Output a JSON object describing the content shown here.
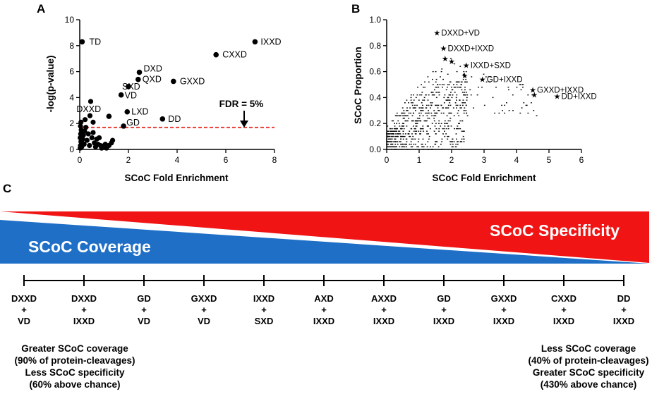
{
  "figure_labels": {
    "A": "A",
    "B": "B",
    "C": "C"
  },
  "chart_data": [
    {
      "id": "A",
      "type": "scatter",
      "xlabel": "SCoC Fold Enrichment",
      "ylabel": "-log(p-value)",
      "xlim": [
        0,
        8
      ],
      "ylim": [
        0,
        10
      ],
      "xticks": [
        0,
        2,
        4,
        6,
        8
      ],
      "yticks": [
        0,
        2,
        4,
        6,
        8,
        10
      ],
      "threshold": {
        "y": 1.7,
        "label": "FDR = 5%",
        "color": "#e8261f"
      },
      "labeled_points": [
        {
          "x": 0.1,
          "y": 8.3,
          "label": "TD"
        },
        {
          "x": 7.2,
          "y": 8.3,
          "label": "IXXD"
        },
        {
          "x": 5.6,
          "y": 7.3,
          "label": "CXXD"
        },
        {
          "x": 2.45,
          "y": 5.95,
          "label": "DXD"
        },
        {
          "x": 2.4,
          "y": 5.4,
          "label": "QXD"
        },
        {
          "x": 3.85,
          "y": 5.25,
          "label": "GXXD"
        },
        {
          "x": 2.0,
          "y": 4.85,
          "label": "SXD"
        },
        {
          "x": 1.7,
          "y": 4.2,
          "label": "VD"
        },
        {
          "x": 1.2,
          "y": 2.55,
          "label": "DXXD"
        },
        {
          "x": 1.95,
          "y": 2.9,
          "label": "LXD"
        },
        {
          "x": 3.4,
          "y": 2.35,
          "label": "DD"
        },
        {
          "x": 1.8,
          "y": 1.8,
          "label": "GD"
        }
      ],
      "other_points": [
        {
          "x": 0.02,
          "y": 0.1
        },
        {
          "x": 0.03,
          "y": 0.3
        },
        {
          "x": 0.05,
          "y": 0.6
        },
        {
          "x": 0.02,
          "y": 0.9
        },
        {
          "x": 0.04,
          "y": 1.2
        },
        {
          "x": 0.06,
          "y": 1.5
        },
        {
          "x": 0.03,
          "y": 1.8
        },
        {
          "x": 0.05,
          "y": 2.1
        },
        {
          "x": 0.08,
          "y": 0.2
        },
        {
          "x": 0.1,
          "y": 0.5
        },
        {
          "x": 0.12,
          "y": 0.8
        },
        {
          "x": 0.15,
          "y": 1.1
        },
        {
          "x": 0.18,
          "y": 0.4
        },
        {
          "x": 0.2,
          "y": 1.4
        },
        {
          "x": 0.22,
          "y": 2.3
        },
        {
          "x": 0.3,
          "y": 0.7
        },
        {
          "x": 0.35,
          "y": 1.2
        },
        {
          "x": 0.4,
          "y": 0.3
        },
        {
          "x": 0.42,
          "y": 2.6
        },
        {
          "x": 0.45,
          "y": 3.7
        },
        {
          "x": 0.5,
          "y": 0.9
        },
        {
          "x": 0.55,
          "y": 1.3
        },
        {
          "x": 0.6,
          "y": 0.5
        },
        {
          "x": 0.65,
          "y": 0.2
        },
        {
          "x": 0.7,
          "y": 0.8
        },
        {
          "x": 0.75,
          "y": 0.4
        },
        {
          "x": 0.8,
          "y": 0.9
        },
        {
          "x": 0.85,
          "y": 0.3
        },
        {
          "x": 0.9,
          "y": 0.1
        },
        {
          "x": 0.95,
          "y": 0.25
        },
        {
          "x": 1.0,
          "y": 0.15
        },
        {
          "x": 1.05,
          "y": 0.4
        },
        {
          "x": 1.1,
          "y": 0.1
        },
        {
          "x": 1.2,
          "y": 0.3
        },
        {
          "x": 1.3,
          "y": 0.5
        },
        {
          "x": 1.35,
          "y": 0.7
        },
        {
          "x": 0.55,
          "y": 2.1
        },
        {
          "x": 0.25,
          "y": 1.7
        }
      ]
    },
    {
      "id": "B",
      "type": "scatter",
      "xlabel": "SCoC Fold Enrichment",
      "ylabel": "SCoC Proportion",
      "xlim": [
        0,
        6
      ],
      "ylim": [
        0,
        1.0
      ],
      "xticks": [
        0,
        1,
        2,
        3,
        4,
        5,
        6
      ],
      "yticks": [
        0.0,
        0.2,
        0.4,
        0.6,
        0.8,
        1.0
      ],
      "starred_points": [
        {
          "x": 1.55,
          "y": 0.9,
          "label": "DXXD+VD"
        },
        {
          "x": 1.75,
          "y": 0.78,
          "label": "DXXD+IXXD"
        },
        {
          "x": 2.45,
          "y": 0.65,
          "label": "IXXD+SXD"
        },
        {
          "x": 2.95,
          "y": 0.54,
          "label": "GD+IXXD"
        },
        {
          "x": 4.5,
          "y": 0.46,
          "label": "GXXD+IXXD"
        },
        {
          "x": 5.25,
          "y": 0.41,
          "label": "DD+IXXD"
        },
        {
          "x": 1.8,
          "y": 0.7,
          "label": ""
        },
        {
          "x": 2.0,
          "y": 0.68,
          "label": ""
        },
        {
          "x": 2.4,
          "y": 0.57,
          "label": ""
        },
        {
          "x": 4.55,
          "y": 0.42,
          "label": ""
        }
      ],
      "cloud_description_points": 700
    },
    {
      "id": "C",
      "type": "diagram",
      "coverage_label": "SCoC Coverage",
      "specificity_label": "SCoC Specificity",
      "coverage_color": "#1f6fc6",
      "specificity_color": "#f01414",
      "combinations": [
        {
          "top": "DXXD",
          "bottom": "VD"
        },
        {
          "top": "DXXD",
          "bottom": "IXXD"
        },
        {
          "top": "GD",
          "bottom": "VD"
        },
        {
          "top": "GXXD",
          "bottom": "VD"
        },
        {
          "top": "IXXD",
          "bottom": "SXD"
        },
        {
          "top": "AXD",
          "bottom": "IXXD"
        },
        {
          "top": "AXXD",
          "bottom": "IXXD"
        },
        {
          "top": "GD",
          "bottom": "IXXD"
        },
        {
          "top": "GXXD",
          "bottom": "IXXD"
        },
        {
          "top": "CXXD",
          "bottom": "IXXD"
        },
        {
          "top": "DD",
          "bottom": "IXXD"
        }
      ],
      "plus": "+",
      "left_note": [
        "Greater SCoC coverage",
        "(90% of protein-cleavages)",
        "Less SCoC specificity",
        "(60% above chance)"
      ],
      "right_note": [
        "Less SCoC coverage",
        "(40% of protein-cleavages)",
        "Greater SCoC specificity",
        "(430% above chance)"
      ]
    }
  ]
}
